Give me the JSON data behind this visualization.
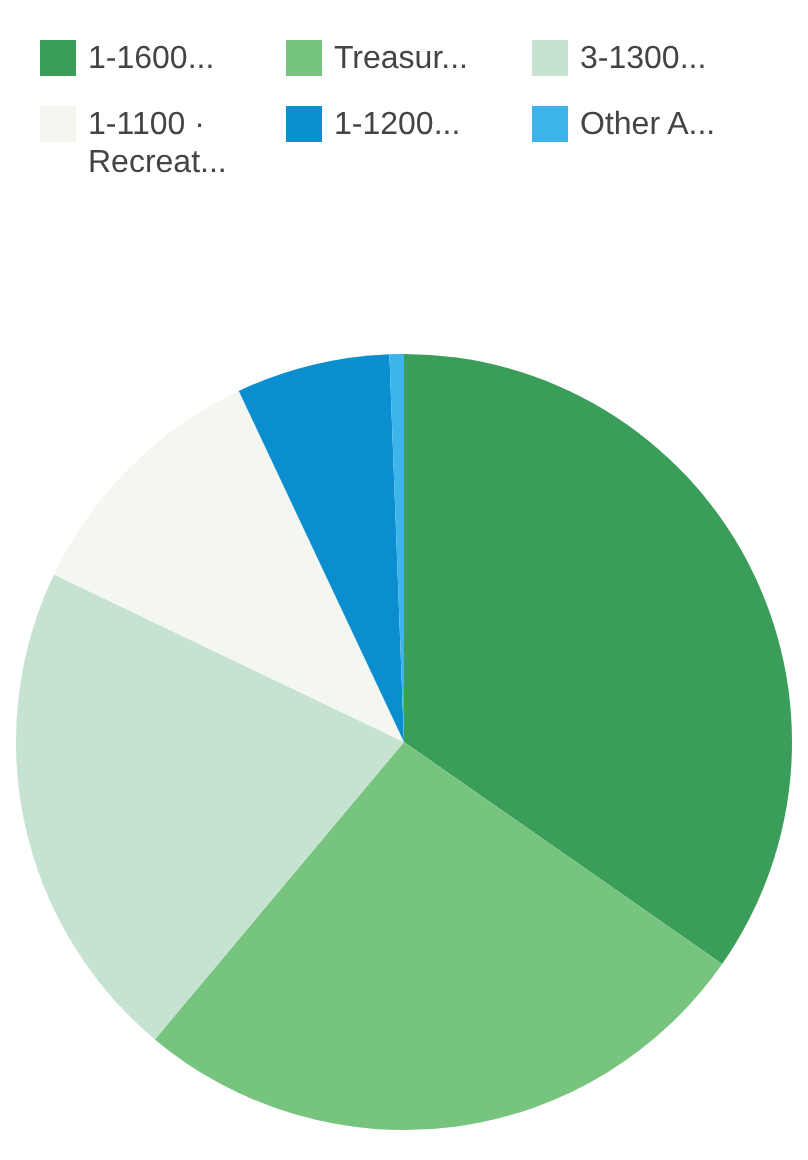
{
  "chart_data": {
    "type": "pie",
    "categories": [
      "1-1600...",
      "Treasur...",
      "3-1300...",
      "1-1100 ·\nRecreat...",
      "1-1200...",
      "Other A..."
    ],
    "values": [
      34.7,
      26.4,
      21,
      10.9,
      6.4,
      0.6
    ],
    "colors": [
      "#3a9e5a",
      "#77c47f",
      "#c6e3d2",
      "#f4f7f0",
      "#0a8ed0",
      "#3db4ea"
    ],
    "legend": "top"
  }
}
